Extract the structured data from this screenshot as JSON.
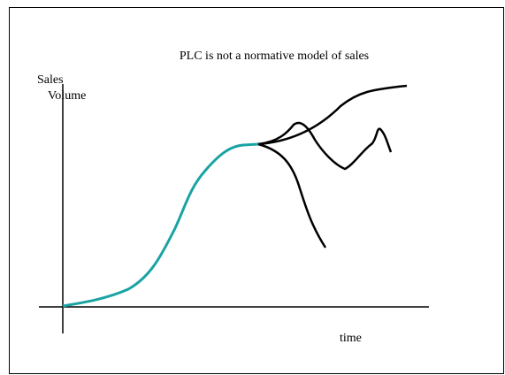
{
  "title": "PLC is not a normative model of sales",
  "y_axis_label": [
    "Sales",
    "Volume"
  ],
  "x_axis_label": "time"
}
